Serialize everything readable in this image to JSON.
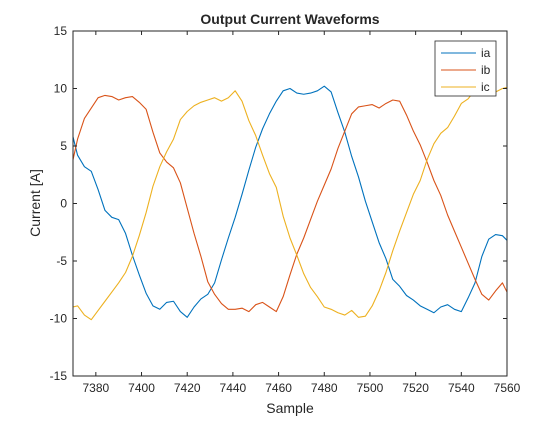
{
  "chart_data": {
    "type": "line",
    "title": "Output Current Waveforms",
    "xlabel": "Sample",
    "ylabel": "Current [A]",
    "xlim": [
      7370,
      7560
    ],
    "ylim": [
      -15,
      15
    ],
    "xticks": [
      7380,
      7400,
      7420,
      7440,
      7460,
      7480,
      7500,
      7520,
      7540,
      7560
    ],
    "yticks": [
      -15,
      -10,
      -5,
      0,
      5,
      10,
      15
    ],
    "grid": false,
    "legend_position": "top-right",
    "series": [
      {
        "name": "ia",
        "color": "#0072BD",
        "x": [
          7370,
          7372,
          7375,
          7378,
          7381,
          7384,
          7387,
          7390,
          7393,
          7396,
          7399,
          7402,
          7405,
          7408,
          7411,
          7414,
          7417,
          7420,
          7423,
          7426,
          7429,
          7432,
          7435,
          7438,
          7441,
          7444,
          7447,
          7450,
          7453,
          7456,
          7459,
          7462,
          7465,
          7468,
          7471,
          7474,
          7477,
          7480,
          7483,
          7486,
          7489,
          7492,
          7495,
          7498,
          7501,
          7504,
          7507,
          7510,
          7513,
          7516,
          7519,
          7522,
          7525,
          7528,
          7531,
          7534,
          7537,
          7540,
          7543,
          7546,
          7549,
          7552,
          7555,
          7558,
          7560
        ],
        "values": [
          5.8,
          4.2,
          3.2,
          2.8,
          1.2,
          -0.6,
          -1.2,
          -1.4,
          -2.6,
          -4.5,
          -6.2,
          -7.8,
          -8.9,
          -9.2,
          -8.6,
          -8.5,
          -9.4,
          -9.9,
          -9.0,
          -8.3,
          -7.9,
          -6.9,
          -4.9,
          -3.0,
          -1.2,
          0.8,
          2.9,
          4.9,
          6.5,
          7.8,
          8.9,
          9.8,
          10.0,
          9.6,
          9.5,
          9.6,
          9.8,
          10.2,
          9.7,
          7.9,
          6.2,
          4.1,
          2.3,
          0.2,
          -1.6,
          -3.4,
          -4.8,
          -6.6,
          -7.2,
          -8.0,
          -8.4,
          -8.9,
          -9.2,
          -9.5,
          -9.0,
          -8.8,
          -9.2,
          -9.4,
          -8.2,
          -6.9,
          -4.6,
          -3.1,
          -2.7,
          -2.8,
          -3.2
        ]
      },
      {
        "name": "ib",
        "color": "#D95319",
        "x": [
          7370,
          7372,
          7375,
          7378,
          7381,
          7384,
          7387,
          7390,
          7393,
          7396,
          7399,
          7402,
          7405,
          7408,
          7411,
          7414,
          7417,
          7420,
          7423,
          7426,
          7429,
          7432,
          7435,
          7438,
          7441,
          7444,
          7447,
          7450,
          7453,
          7456,
          7459,
          7462,
          7465,
          7468,
          7471,
          7474,
          7477,
          7480,
          7483,
          7486,
          7489,
          7492,
          7495,
          7498,
          7501,
          7504,
          7507,
          7510,
          7513,
          7516,
          7519,
          7522,
          7525,
          7528,
          7531,
          7534,
          7537,
          7540,
          7543,
          7546,
          7549,
          7552,
          7555,
          7558,
          7560
        ],
        "values": [
          3.8,
          5.6,
          7.4,
          8.3,
          9.2,
          9.4,
          9.3,
          9.0,
          9.2,
          9.3,
          8.8,
          8.2,
          6.2,
          4.4,
          3.6,
          3.1,
          1.8,
          -0.4,
          -2.6,
          -4.6,
          -6.8,
          -7.9,
          -8.7,
          -9.2,
          -9.2,
          -9.1,
          -9.4,
          -8.8,
          -8.6,
          -9.0,
          -9.4,
          -8.1,
          -6.2,
          -4.4,
          -3.0,
          -1.4,
          0.2,
          1.6,
          3.0,
          4.8,
          6.3,
          7.8,
          8.4,
          8.5,
          8.6,
          8.3,
          8.7,
          9.0,
          8.9,
          7.7,
          6.3,
          5.1,
          3.6,
          2.0,
          0.7,
          -1.0,
          -2.4,
          -3.8,
          -5.2,
          -6.6,
          -7.9,
          -8.4,
          -7.6,
          -6.9,
          -7.7
        ]
      },
      {
        "name": "ic",
        "color": "#EDB120",
        "x": [
          7370,
          7372,
          7375,
          7378,
          7381,
          7384,
          7387,
          7390,
          7393,
          7396,
          7399,
          7402,
          7405,
          7408,
          7411,
          7414,
          7417,
          7420,
          7423,
          7426,
          7429,
          7432,
          7435,
          7438,
          7441,
          7444,
          7447,
          7450,
          7453,
          7456,
          7459,
          7462,
          7465,
          7468,
          7471,
          7474,
          7477,
          7480,
          7483,
          7486,
          7489,
          7492,
          7495,
          7498,
          7501,
          7504,
          7507,
          7510,
          7513,
          7516,
          7519,
          7522,
          7525,
          7528,
          7531,
          7534,
          7537,
          7540,
          7543,
          7546,
          7549,
          7552,
          7555,
          7558,
          7560
        ],
        "values": [
          -9.0,
          -8.9,
          -9.7,
          -10.1,
          -9.3,
          -8.5,
          -7.7,
          -6.9,
          -6.0,
          -4.6,
          -2.8,
          -0.8,
          1.5,
          3.2,
          4.5,
          5.6,
          7.3,
          8.0,
          8.5,
          8.8,
          9.0,
          9.2,
          8.9,
          9.2,
          9.8,
          8.9,
          7.2,
          5.9,
          4.2,
          2.6,
          1.4,
          -1.1,
          -3.0,
          -4.5,
          -6.1,
          -7.3,
          -8.1,
          -9.0,
          -9.2,
          -9.5,
          -9.7,
          -9.3,
          -9.9,
          -9.8,
          -8.9,
          -7.6,
          -6.0,
          -4.1,
          -2.4,
          -0.8,
          0.8,
          2.0,
          3.8,
          5.2,
          6.1,
          6.6,
          7.6,
          8.7,
          9.1,
          9.9,
          10.0,
          9.8,
          9.7,
          10.0,
          10.1
        ]
      }
    ]
  }
}
